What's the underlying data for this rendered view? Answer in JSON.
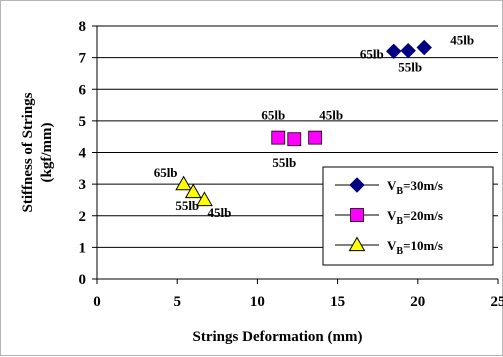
{
  "chart_data": {
    "type": "scatter",
    "xlabel": "Strings Deformation (mm)",
    "ylabel_line1": "Stiffness of Strings",
    "ylabel_line2": "(kgf/mm)",
    "xlim": [
      0,
      25
    ],
    "ylim": [
      0,
      8
    ],
    "xticks": [
      0,
      5,
      10,
      15,
      20,
      25
    ],
    "yticks": [
      0,
      1,
      2,
      3,
      4,
      5,
      6,
      7,
      8
    ],
    "grid": "horizontal",
    "legend_position": "lower-right",
    "series": [
      {
        "name_main": "V",
        "name_sub": "B",
        "name_rest": "=30m/s",
        "marker": "diamond",
        "color": "#000080",
        "points": [
          {
            "x": 18.5,
            "y": 7.2,
            "label": "65lb"
          },
          {
            "x": 19.4,
            "y": 7.22,
            "label": "55lb"
          },
          {
            "x": 20.4,
            "y": 7.32,
            "label": "45lb"
          }
        ]
      },
      {
        "name_main": "V",
        "name_sub": "B",
        "name_rest": "=20m/s",
        "marker": "square",
        "color": "#ff00ff",
        "points": [
          {
            "x": 11.3,
            "y": 4.47,
            "label": "65lb"
          },
          {
            "x": 12.3,
            "y": 4.42,
            "label": "55lb"
          },
          {
            "x": 13.6,
            "y": 4.47,
            "label": "45lb"
          }
        ]
      },
      {
        "name_main": "V",
        "name_sub": "B",
        "name_rest": "=10m/s",
        "marker": "triangle",
        "color": "#ffff00",
        "points": [
          {
            "x": 5.4,
            "y": 3.0,
            "label": "65lb"
          },
          {
            "x": 6.0,
            "y": 2.75,
            "label": "55lb"
          },
          {
            "x": 6.7,
            "y": 2.5,
            "label": "45lb"
          }
        ]
      }
    ]
  }
}
